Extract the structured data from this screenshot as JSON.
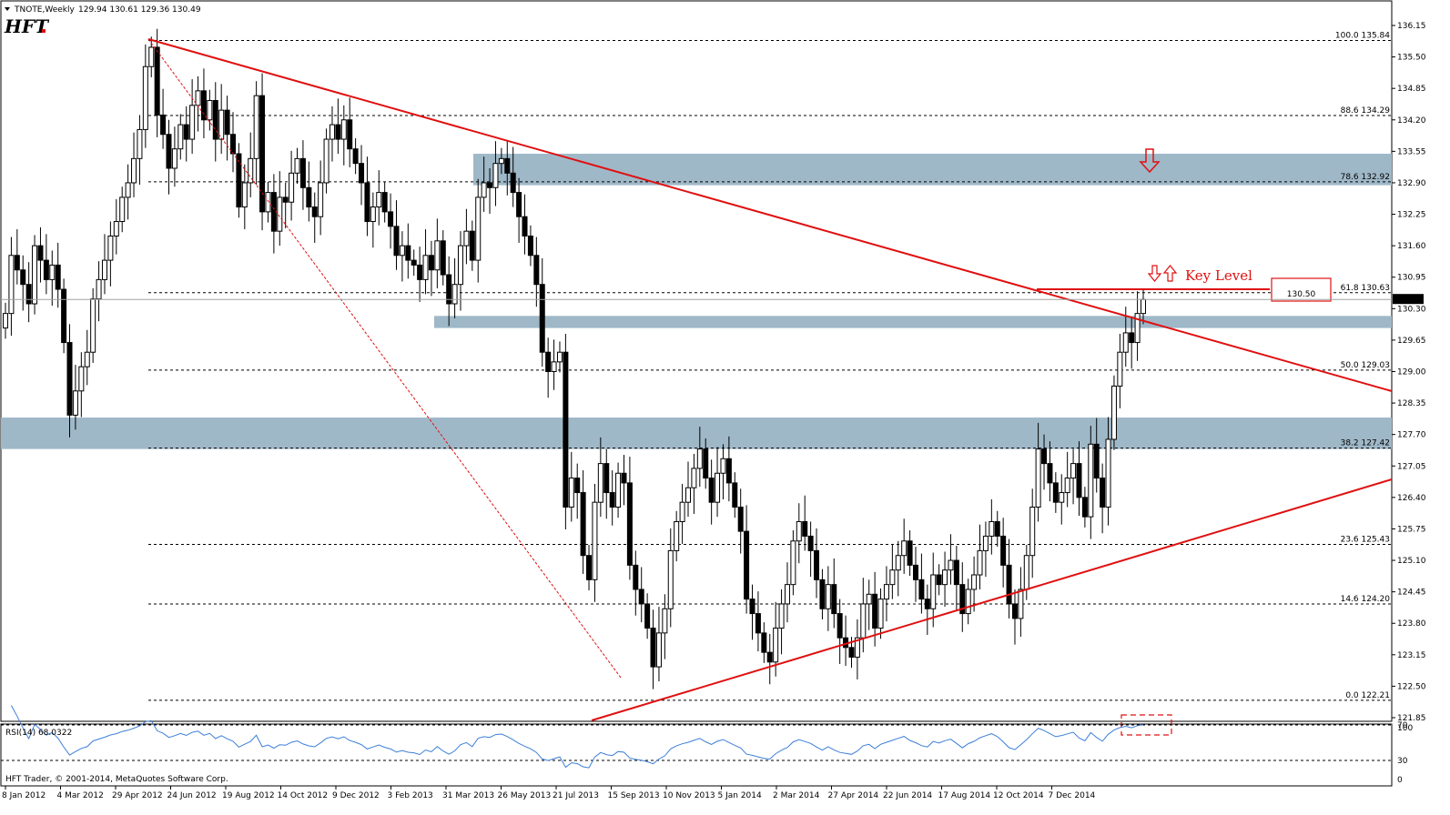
{
  "header": {
    "symbol_label": "TNOTE,Weekly",
    "ohlc": "129.94 130.61 129.36 130.49",
    "logo_text": "HFT"
  },
  "colors": {
    "up_candle": "#ffffff",
    "down_candle": "#000000",
    "trendline": "#e01010",
    "zone": "#9fb8c8",
    "rsi_line": "#3d7fd9"
  },
  "chart_data": [
    {
      "type": "candlestick",
      "title": "",
      "ylim": [
        121.65,
        136.3
      ],
      "yticks": [
        136.15,
        135.5,
        134.85,
        134.2,
        133.55,
        132.9,
        132.25,
        131.6,
        130.95,
        130.3,
        129.65,
        129.0,
        128.35,
        127.7,
        127.05,
        126.4,
        125.75,
        125.1,
        124.45,
        123.8,
        123.15,
        122.5,
        121.85
      ],
      "current_price": "130.49",
      "xticks": [
        "8 Jan 2012",
        "4 Mar 2012",
        "29 Apr 2012",
        "24 Jun 2012",
        "19 Aug 2012",
        "14 Oct 2012",
        "9 Dec 2012",
        "3 Feb 2013",
        "31 Mar 2013",
        "26 May 2013",
        "21 Jul 2013",
        "15 Sep 2013",
        "10 Nov 2013",
        "5 Jan 2014",
        "2 Mar 2014",
        "27 Apr 2014",
        "22 Jun 2014",
        "17 Aug 2014",
        "12 Oct 2014",
        "7 Dec 2014"
      ],
      "fibonacci": [
        {
          "level": "100.0",
          "price": 135.84
        },
        {
          "level": "88.6",
          "price": 134.29
        },
        {
          "level": "78.6",
          "price": 132.92
        },
        {
          "level": "61.8",
          "price": 130.63
        },
        {
          "level": "50.0",
          "price": 129.03
        },
        {
          "level": "38.2",
          "price": 127.42
        },
        {
          "level": "23.6",
          "price": 125.43
        },
        {
          "level": "14.6",
          "price": 124.2
        },
        {
          "level": "0.0",
          "price": 122.21
        }
      ],
      "zones": [
        {
          "from": 132.85,
          "to": 133.5
        },
        {
          "from": 129.9,
          "to": 130.15
        },
        {
          "from": 127.4,
          "to": 128.05
        }
      ],
      "annotation": {
        "text": "Key Level",
        "price_label": "130.50",
        "price": 130.5
      },
      "closes": [
        130.2,
        131.4,
        131.1,
        130.8,
        130.4,
        131.6,
        131.3,
        130.9,
        131.2,
        130.7,
        129.6,
        128.1,
        128.6,
        129.1,
        129.4,
        130.5,
        130.9,
        131.3,
        131.8,
        132.1,
        132.6,
        132.9,
        133.4,
        134.0,
        135.3,
        135.7,
        134.3,
        133.9,
        133.2,
        133.6,
        134.1,
        133.8,
        134.5,
        134.8,
        134.2,
        134.6,
        133.8,
        134.4,
        133.9,
        133.5,
        132.4,
        132.9,
        133.4,
        134.7,
        132.3,
        132.7,
        131.9,
        132.6,
        132.5,
        133.1,
        133.4,
        132.8,
        132.4,
        132.2,
        132.9,
        133.8,
        134.1,
        133.8,
        134.2,
        133.6,
        133.3,
        132.9,
        132.1,
        132.4,
        132.7,
        132.3,
        132.0,
        131.4,
        131.6,
        131.3,
        131.2,
        130.9,
        131.4,
        131.1,
        131.7,
        131.0,
        130.4,
        130.8,
        131.6,
        131.9,
        131.3,
        132.6,
        132.9,
        132.8,
        133.3,
        133.4,
        133.1,
        132.7,
        132.2,
        131.8,
        131.4,
        130.8,
        129.4,
        129.0,
        129.2,
        129.4,
        126.2,
        126.8,
        126.5,
        125.2,
        124.7,
        126.3,
        127.1,
        126.5,
        126.2,
        126.9,
        126.7,
        125.0,
        124.5,
        124.2,
        123.7,
        122.9,
        123.6,
        124.1,
        125.3,
        125.9,
        126.3,
        126.6,
        127.0,
        127.4,
        126.8,
        126.3,
        126.9,
        127.2,
        126.7,
        126.2,
        125.7,
        124.3,
        124.0,
        123.6,
        123.2,
        123.0,
        123.7,
        124.2,
        124.6,
        125.5,
        125.9,
        125.6,
        125.3,
        124.7,
        124.1,
        124.6,
        124.0,
        123.5,
        123.3,
        123.1,
        123.5,
        124.2,
        124.4,
        123.7,
        124.3,
        124.6,
        124.9,
        125.2,
        125.5,
        125.0,
        124.7,
        124.3,
        124.1,
        124.8,
        124.6,
        124.9,
        125.1,
        124.6,
        124.0,
        124.5,
        124.8,
        125.3,
        125.6,
        125.9,
        125.6,
        125.0,
        124.2,
        123.9,
        124.5,
        125.2,
        126.2,
        127.4,
        127.1,
        126.7,
        126.3,
        126.5,
        126.8,
        127.1,
        126.4,
        126.0,
        127.5,
        126.8,
        126.2,
        127.6,
        128.7,
        129.4,
        129.8,
        129.6,
        130.2,
        130.49
      ],
      "rsi": {
        "label": "RSI(14) 68.0322",
        "ylim": [
          0,
          100
        ],
        "levels": [
          30,
          70
        ],
        "yticks": [
          100,
          70,
          30,
          0
        ]
      }
    }
  ],
  "footer": {
    "copyright": "HFT Trader, © 2001-2014, MetaQuotes Software Corp."
  }
}
